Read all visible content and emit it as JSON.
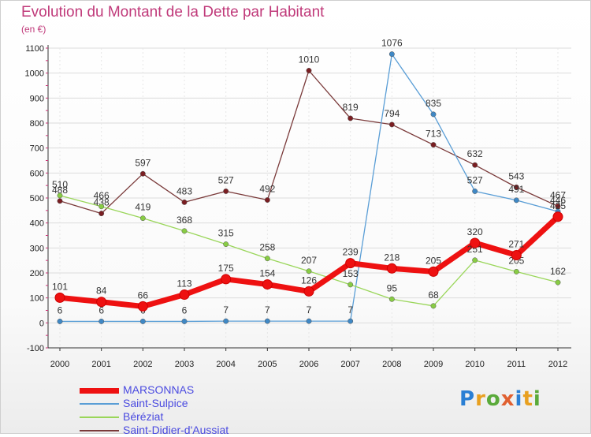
{
  "title": "Evolution du Montant de la Dette par Habitant",
  "subtitle": "(en €)",
  "logo": {
    "text": "Proxiti",
    "letters": [
      "P",
      "r",
      "o",
      "x",
      "i",
      "t",
      "i"
    ],
    "colors": [
      "#2a7fd4",
      "#e8a020",
      "#5aaa3a",
      "#e06030",
      "#2a7fd4",
      "#e8a020",
      "#5aaa3a"
    ]
  },
  "chart_data": {
    "type": "line",
    "title": "Evolution du Montant de la Dette par Habitant",
    "xlabel": "",
    "ylabel": "(en €)",
    "categories": [
      "2000",
      "2001",
      "2002",
      "2003",
      "2004",
      "2005",
      "2006",
      "2007",
      "2008",
      "2009",
      "2010",
      "2011",
      "2012"
    ],
    "ylim": [
      -100,
      1100
    ],
    "yticks": [
      "-100",
      "0",
      "100",
      "200",
      "300",
      "400",
      "500",
      "600",
      "700",
      "800",
      "900",
      "1000",
      "1100"
    ],
    "grid": true,
    "legend_position": "bottom-left",
    "series": [
      {
        "name": "Saint-Didier-d'Aussiat",
        "color": "#7a1e22",
        "line_color": "#7a3a3a",
        "values": [
          488,
          438,
          597,
          483,
          527,
          492,
          1010,
          819,
          794,
          713,
          632,
          543,
          467
        ],
        "labels": [
          "488",
          "438",
          "597",
          "483",
          "527",
          "492",
          "1010",
          "819",
          "794",
          "713",
          "632",
          "543",
          "467"
        ]
      },
      {
        "name": "Saint-Sulpice",
        "color": "#3f88c5",
        "line_color": "#5a9ed6",
        "values": [
          6,
          6,
          6,
          6,
          7,
          7,
          7,
          7,
          1076,
          835,
          527,
          491,
          446
        ],
        "labels": [
          "6",
          "6",
          "6",
          "6",
          "7",
          "7",
          "7",
          "7",
          "1076",
          "835",
          "527",
          "491",
          "446"
        ]
      },
      {
        "name": "Béréziat",
        "color": "#88cc44",
        "line_color": "#9ad65a",
        "values": [
          510,
          466,
          419,
          368,
          315,
          258,
          207,
          153,
          95,
          68,
          251,
          205,
          162
        ],
        "labels": [
          "510",
          "466",
          "419",
          "368",
          "315",
          "258",
          "207",
          "153",
          "95",
          "68",
          "251",
          "205",
          "162"
        ]
      },
      {
        "name": "MARSONNAS",
        "color": "#ee1111",
        "line_color": "#ee1111",
        "values": [
          101,
          84,
          66,
          113,
          175,
          154,
          126,
          239,
          218,
          205,
          320,
          271,
          425
        ],
        "labels": [
          "101",
          "84",
          "66",
          "113",
          "175",
          "154",
          "126",
          "239",
          "218",
          "205",
          "320",
          "271",
          "425"
        ]
      }
    ],
    "legend": [
      {
        "name": "MARSONNAS",
        "color": "#ee1111",
        "text_color": "#4a4ae0",
        "thickness": 7
      },
      {
        "name": "Saint-Sulpice",
        "color": "#5a9ed6",
        "text_color": "#4a4ae0",
        "thickness": 2
      },
      {
        "name": "Béréziat",
        "color": "#9ad65a",
        "text_color": "#4a4ae0",
        "thickness": 2
      },
      {
        "name": "Saint-Didier-d'Aussiat",
        "color": "#7a3a3a",
        "text_color": "#4a4ae0",
        "thickness": 2
      }
    ]
  }
}
